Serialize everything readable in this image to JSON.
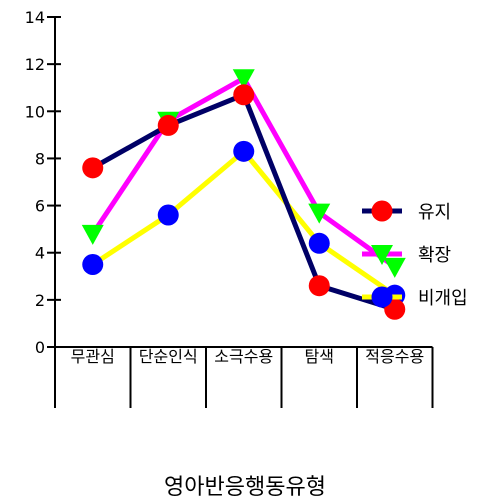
{
  "chart_data": {
    "type": "line",
    "title": "",
    "xlabel": "영아반응행동유형",
    "ylabel": "",
    "ylim": [
      0,
      14
    ],
    "yticks": [
      0,
      2,
      4,
      6,
      8,
      10,
      12,
      14
    ],
    "grid": false,
    "legend_position": "right",
    "categories": [
      "무관심",
      "단순인식",
      "소극수용",
      "탐색",
      "적응수용"
    ],
    "series": [
      {
        "name": "유지",
        "line_color": "#000066",
        "marker": "circle",
        "marker_color": "#ff0000",
        "values": [
          7.6,
          9.4,
          10.7,
          2.6,
          1.6
        ]
      },
      {
        "name": "확장",
        "line_color": "#ff00ff",
        "marker": "triangle-down",
        "marker_color": "#00ff00",
        "values": [
          4.8,
          9.6,
          11.4,
          5.7,
          3.4
        ]
      },
      {
        "name": "비개입",
        "line_color": "#ffff00",
        "marker": "circle",
        "marker_color": "#0000ff",
        "values": [
          3.5,
          5.6,
          8.3,
          4.4,
          2.2
        ]
      }
    ]
  }
}
